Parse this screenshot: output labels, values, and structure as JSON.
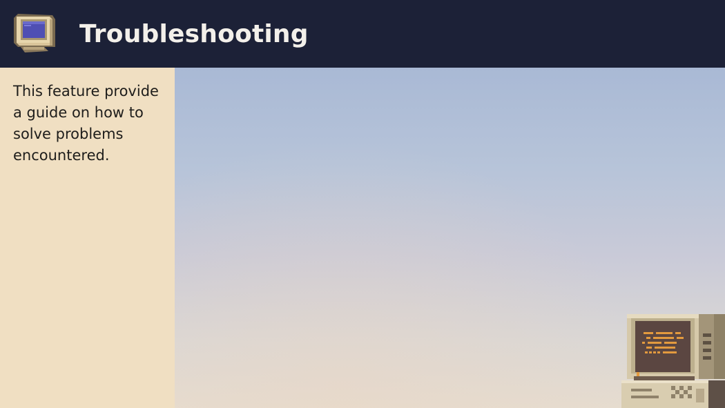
{
  "header": {
    "title": "Troubleshooting",
    "icon": "retro-monitor-icon"
  },
  "sidebar": {
    "description": "This feature provide a guide on how to solve problems encountered."
  },
  "main": {
    "illustration": "retro-computer-icon"
  },
  "colors": {
    "header_bg": "#1c2137",
    "sidebar_bg": "#f0dfc2",
    "title_text": "#f3f0ea"
  }
}
